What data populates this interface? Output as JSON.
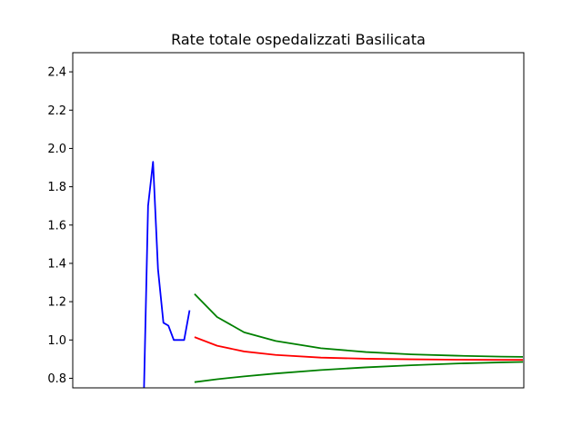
{
  "chart_data": {
    "type": "line",
    "title": "Rate totale ospedalizzati Basilicata",
    "xlabel": "",
    "ylabel": "",
    "xlim": [
      0,
      100
    ],
    "ylim": [
      0.75,
      2.5
    ],
    "yticks": [
      0.8,
      1.0,
      1.2,
      1.4,
      1.6,
      1.8,
      2.0,
      2.2,
      2.4
    ],
    "ytick_labels": [
      "0.8",
      "1.0",
      "1.2",
      "1.4",
      "1.6",
      "1.8",
      "2.0",
      "2.2",
      "2.4"
    ],
    "xticks_visible": false,
    "grid": false,
    "legend": "none",
    "series": [
      {
        "color": "#0000ff",
        "x": [
          15.8,
          16.7,
          17.8,
          18.9,
          20.1,
          21.2,
          22.4,
          23.5,
          24.7,
          25.9
        ],
        "y": [
          0.75,
          1.7,
          1.93,
          1.37,
          1.09,
          1.075,
          1.0,
          1.0,
          1.0,
          1.155
        ]
      },
      {
        "color": "#ff0000",
        "x": [
          27.0,
          32,
          38,
          45,
          55,
          65,
          75,
          85,
          95,
          99.8
        ],
        "y": [
          1.015,
          0.97,
          0.94,
          0.922,
          0.908,
          0.902,
          0.899,
          0.897,
          0.896,
          0.896
        ]
      },
      {
        "color": "#008000",
        "x": [
          27.0,
          32,
          38,
          45,
          55,
          65,
          75,
          85,
          95,
          99.8
        ],
        "y": [
          1.24,
          1.12,
          1.04,
          0.995,
          0.957,
          0.937,
          0.925,
          0.918,
          0.913,
          0.912
        ]
      },
      {
        "color": "#008000",
        "x": [
          27.0,
          32,
          38,
          45,
          55,
          65,
          75,
          85,
          95,
          99.8
        ],
        "y": [
          0.78,
          0.795,
          0.81,
          0.825,
          0.843,
          0.857,
          0.868,
          0.877,
          0.883,
          0.885
        ]
      }
    ]
  }
}
